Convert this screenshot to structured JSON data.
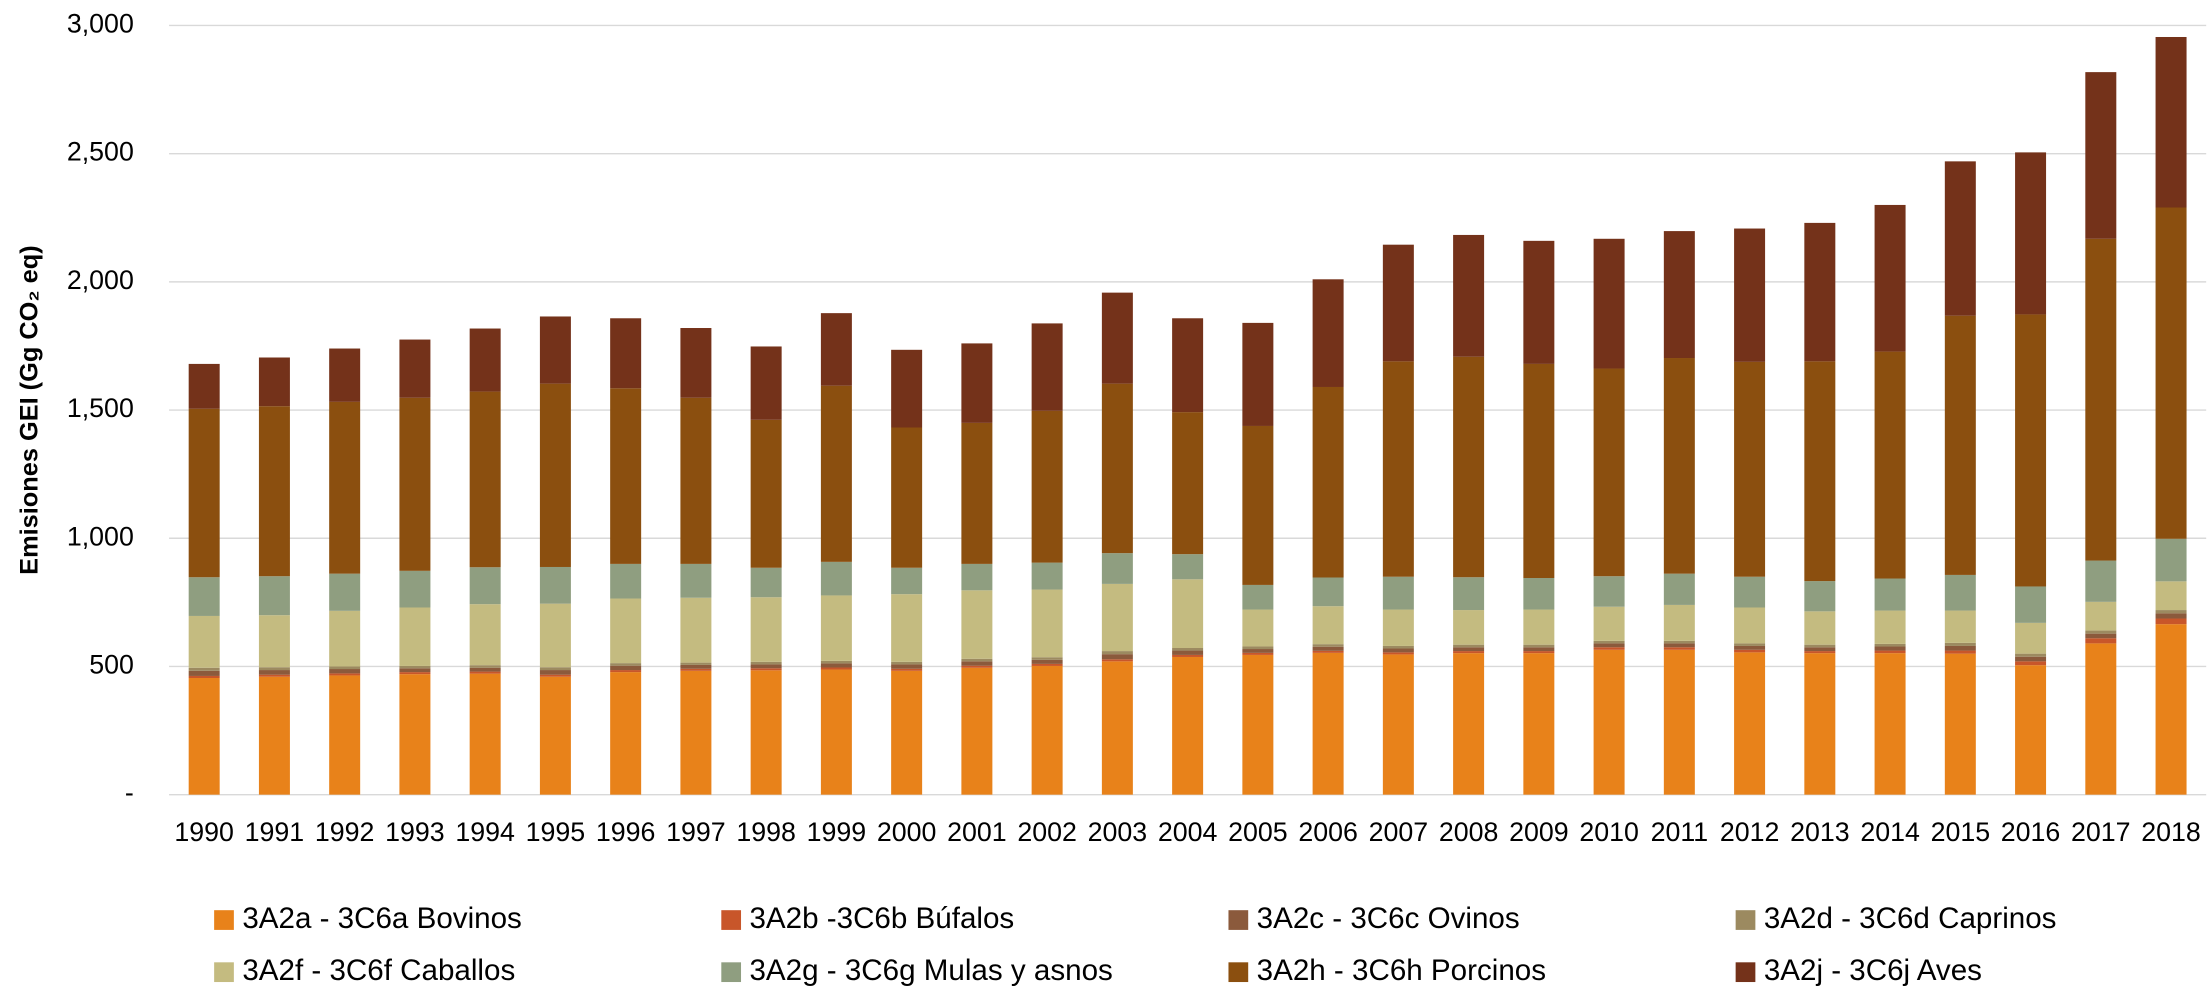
{
  "chart_data": {
    "type": "stacked_bar",
    "y_label": "Emisiones GEI (Gg CO₂ eq)",
    "categories": [
      "1990",
      "1991",
      "1992",
      "1993",
      "1994",
      "1995",
      "1996",
      "1997",
      "1998",
      "1999",
      "2000",
      "2001",
      "2002",
      "2003",
      "2004",
      "2005",
      "2006",
      "2007",
      "2008",
      "2009",
      "2010",
      "2011",
      "2012",
      "2013",
      "2014",
      "2015",
      "2016",
      "2017",
      "2018"
    ],
    "series": [
      {
        "name": "3A2a - 3C6a Bovinos",
        "color": "#e8821a",
        "values": [
          455,
          460,
          465,
          470,
          472,
          460,
          478,
          483,
          485,
          488,
          483,
          495,
          502,
          520,
          537,
          545,
          553,
          547,
          552,
          552,
          565,
          565,
          555,
          552,
          552,
          550,
          505,
          590,
          665
        ]
      },
      {
        "name": "3A2b -3C6b Búfalos",
        "color": "#c8562a",
        "values": [
          8,
          8,
          8,
          8,
          8,
          8,
          8,
          8,
          8,
          8,
          8,
          8,
          8,
          8,
          8,
          8,
          8,
          8,
          8,
          8,
          10,
          10,
          10,
          8,
          10,
          12,
          15,
          20,
          22
        ]
      },
      {
        "name": "3A2c - 3C6c Ovinos",
        "color": "#8b5a3c",
        "values": [
          20,
          18,
          17,
          15,
          15,
          18,
          17,
          15,
          15,
          16,
          17,
          17,
          16,
          20,
          17,
          15,
          16,
          15,
          15,
          15,
          15,
          15,
          15,
          15,
          16,
          18,
          18,
          18,
          20
        ]
      },
      {
        "name": "3A2d - 3C6d Caprinos",
        "color": "#9c8a60",
        "values": [
          12,
          11,
          10,
          9,
          10,
          11,
          10,
          9,
          10,
          10,
          10,
          10,
          10,
          12,
          10,
          10,
          10,
          10,
          10,
          10,
          10,
          10,
          10,
          10,
          10,
          12,
          12,
          12,
          13
        ]
      },
      {
        "name": "3A2f - 3C6f Caballos",
        "color": "#c4bb80",
        "values": [
          202,
          203,
          217,
          228,
          238,
          248,
          252,
          253,
          252,
          255,
          264,
          267,
          264,
          262,
          268,
          144,
          148,
          142,
          135,
          137,
          133,
          140,
          140,
          130,
          130,
          126,
          120,
          112,
          112
        ]
      },
      {
        "name": "3A2g - 3C6g Mulas y asnos",
        "color": "#8f9e80",
        "values": [
          151,
          152,
          145,
          143,
          144,
          143,
          135,
          132,
          115,
          131,
          103,
          103,
          105,
          120,
          98,
          96,
          112,
          128,
          128,
          123,
          119,
          122,
          120,
          118,
          125,
          139,
          142,
          161,
          166
        ]
      },
      {
        "name": "3A2h - 3C6h Porcinos",
        "color": "#8b4f0f",
        "values": [
          657,
          663,
          670,
          675,
          685,
          715,
          685,
          648,
          577,
          687,
          547,
          550,
          592,
          661,
          554,
          620,
          743,
          840,
          860,
          835,
          810,
          841,
          838,
          857,
          885,
          1011,
          1061,
          1255,
          1292
        ]
      },
      {
        "name": "3A2j - 3C6j Aves",
        "color": "#74321a",
        "values": [
          175,
          190,
          208,
          227,
          246,
          262,
          273,
          272,
          286,
          283,
          303,
          310,
          341,
          355,
          366,
          402,
          420,
          455,
          475,
          480,
          506,
          495,
          520,
          540,
          572,
          602,
          632,
          650,
          665
        ]
      }
    ],
    "ylim": [
      0,
      3000
    ],
    "yticks": [
      {
        "value": 0,
        "label": "-"
      },
      500,
      {
        "value": 1000,
        "label": "1,000"
      },
      {
        "value": 1500,
        "label": "1,500"
      },
      {
        "value": 2000,
        "label": "2,000"
      },
      {
        "value": 2500,
        "label": "2,500"
      },
      {
        "value": 3000,
        "label": "3,000"
      }
    ],
    "grid": true
  }
}
